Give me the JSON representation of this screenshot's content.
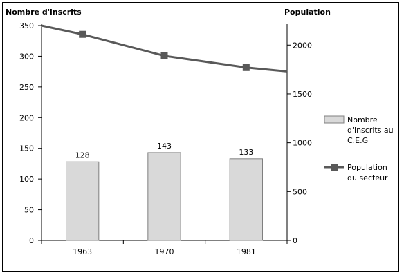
{
  "chart_data": {
    "type": "bar",
    "categories": [
      "1963",
      "1970",
      "1981"
    ],
    "y_left": {
      "title": "Nombre d'inscrits",
      "ylim": [
        0,
        350
      ],
      "ticks": [
        0,
        50,
        100,
        150,
        200,
        250,
        300,
        350
      ]
    },
    "y_right": {
      "title": "Population",
      "ylim": [
        0,
        2200
      ],
      "ticks": [
        0,
        500,
        1000,
        1500,
        2000
      ]
    },
    "series": [
      {
        "name": "Nombre d'inscrits au C.E.G",
        "kind": "bar",
        "axis": "left",
        "values": [
          128,
          143,
          133
        ],
        "labels": [
          "128",
          "143",
          "133"
        ],
        "color": "#d9d9d9"
      },
      {
        "name": "Population du secteur",
        "kind": "line",
        "axis": "right",
        "x": [
          0.5,
          1,
          2,
          3,
          3.5
        ],
        "values": [
          2200,
          2110,
          1890,
          1770,
          1730
        ],
        "marker_indices": [
          1,
          2,
          3
        ],
        "color": "#595959"
      }
    ],
    "legend": {
      "placement": "right",
      "bar_lines": [
        "Nombre",
        "d'inscrits au",
        "C.E.G"
      ],
      "line_lines": [
        "Population",
        "du secteur"
      ]
    },
    "grid": false
  }
}
